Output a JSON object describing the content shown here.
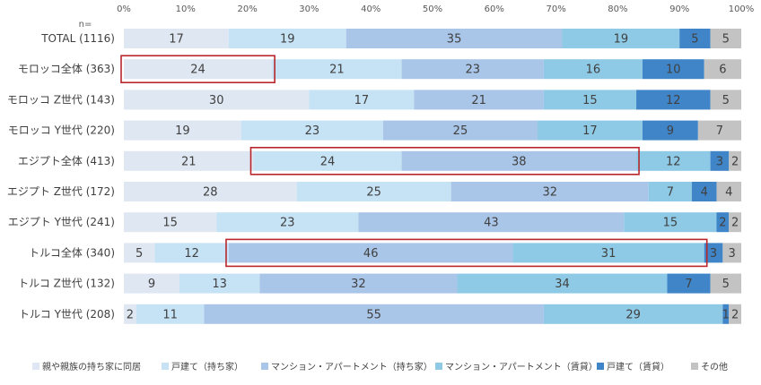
{
  "chart_data": {
    "type": "bar",
    "orientation": "horizontal",
    "stacked": true,
    "n_label": "n=",
    "xlim": [
      0,
      100
    ],
    "x_ticks": [
      "0%",
      "10%",
      "20%",
      "30%",
      "40%",
      "50%",
      "60%",
      "70%",
      "80%",
      "90%",
      "100%"
    ],
    "legend_position": "bottom",
    "categories": [
      "TOTAL (1116)",
      "モロッコ全体 (363)",
      "モロッコ Z世代 (143)",
      "モロッコ Y世代 (220)",
      "エジプト全体 (413)",
      "エジプト Z世代 (172)",
      "エジプト Y世代 (241)",
      "トルコ全体 (340)",
      "トルコ Z世代 (132)",
      "トルコ Y世代 (208)"
    ],
    "series": [
      {
        "name": "親や親族の持ち家に同居",
        "color": "#dfe7f2",
        "values": [
          17,
          24,
          30,
          19,
          21,
          28,
          15,
          5,
          9,
          2
        ]
      },
      {
        "name": "戸建て（持ち家）",
        "color": "#c6e2f5",
        "values": [
          19,
          21,
          17,
          23,
          24,
          25,
          23,
          12,
          13,
          11
        ]
      },
      {
        "name": "マンション・アパートメント（持ち家）",
        "color": "#a9c5e8",
        "values": [
          35,
          23,
          21,
          25,
          38,
          32,
          43,
          46,
          32,
          55
        ]
      },
      {
        "name": "マンション・アパートメント（賃貸）",
        "color": "#8ecae6",
        "values": [
          19,
          16,
          15,
          17,
          12,
          7,
          15,
          31,
          34,
          29
        ]
      },
      {
        "name": "戸建て（賃貸）",
        "color": "#3f85c8",
        "values": [
          5,
          10,
          12,
          9,
          3,
          4,
          2,
          3,
          7,
          1
        ]
      },
      {
        "name": "その他",
        "color": "#c3c3c3",
        "values": [
          5,
          6,
          5,
          7,
          2,
          4,
          2,
          3,
          5,
          2
        ]
      }
    ],
    "highlights": [
      {
        "row": 1,
        "from_series": 0,
        "to_series": 0
      },
      {
        "row": 4,
        "from_series": 1,
        "to_series": 2
      },
      {
        "row": 7,
        "from_series": 2,
        "to_series": 3
      }
    ],
    "highlight_color": "#b8262c"
  }
}
